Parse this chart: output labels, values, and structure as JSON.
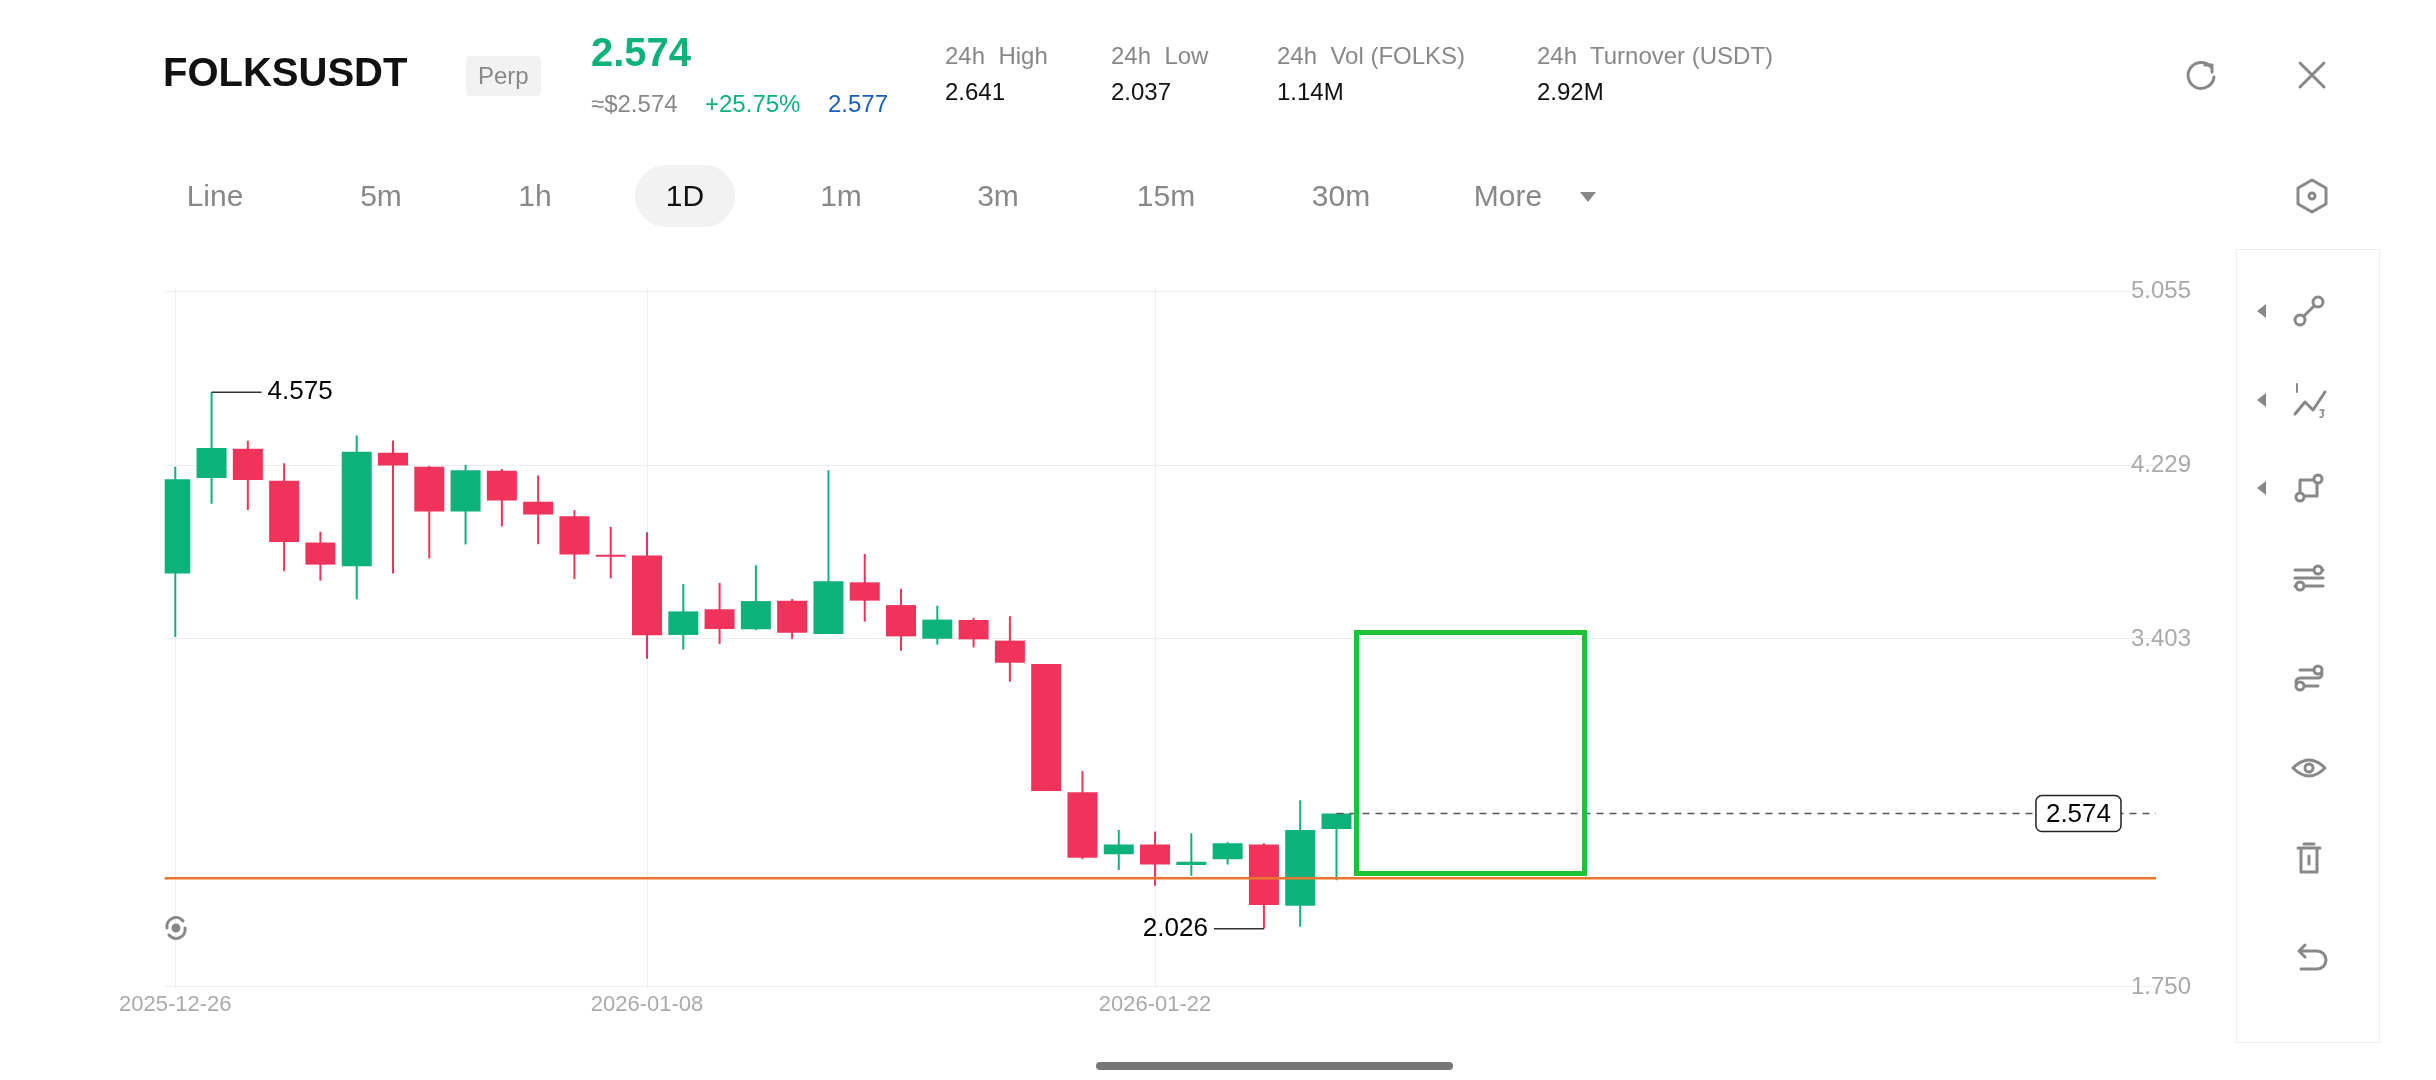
{
  "chart_data": {
    "type": "candlestick",
    "title": "FOLKSUSDT",
    "annotations": [
      "Perp",
      "2.574",
      "≈$2.574",
      "+25.75%",
      "2.577",
      "24h  High",
      "2.641",
      "24h  Low",
      "2.037",
      "24h  Vol (FOLKS)",
      "1.14M",
      "24h  Turnover (USDT)",
      "2.92M",
      "Line",
      "5m",
      "1h",
      "1D",
      "1m",
      "3m",
      "15m",
      "30m",
      "More",
      {
        "text": "4.575",
        "x": "2025-12-27",
        "y": 4.575
      },
      {
        "text": "2.026",
        "x": "2026-01-25",
        "y": 2.026
      }
    ],
    "x": [
      "2025-12-26",
      "2025-12-27",
      "2025-12-28",
      "2025-12-29",
      "2025-12-30",
      "2025-12-31",
      "2026-01-01",
      "2026-01-02",
      "2026-01-03",
      "2026-01-04",
      "2026-01-05",
      "2026-01-06",
      "2026-01-07",
      "2026-01-08",
      "2026-01-09",
      "2026-01-10",
      "2026-01-11",
      "2026-01-12",
      "2026-01-13",
      "2026-01-14",
      "2026-01-15",
      "2026-01-16",
      "2026-01-17",
      "2026-01-18",
      "2026-01-19",
      "2026-01-20",
      "2026-01-21",
      "2026-01-22",
      "2026-01-23",
      "2026-01-24",
      "2026-01-25",
      "2026-01-26",
      "2026-01-27"
    ],
    "ohlc": [
      [
        3.714,
        4.221,
        3.412,
        4.162
      ],
      [
        4.167,
        4.575,
        4.045,
        4.31
      ],
      [
        4.307,
        4.345,
        4.015,
        4.158
      ],
      [
        4.154,
        4.238,
        3.725,
        3.864
      ],
      [
        3.861,
        3.912,
        3.68,
        3.756
      ],
      [
        3.748,
        4.37,
        3.591,
        4.292
      ],
      [
        4.288,
        4.346,
        3.714,
        4.227
      ],
      [
        4.221,
        4.224,
        3.785,
        4.009
      ],
      [
        4.009,
        4.231,
        3.852,
        4.204
      ],
      [
        4.202,
        4.21,
        3.937,
        4.061
      ],
      [
        4.055,
        4.18,
        3.853,
        3.994
      ],
      [
        3.986,
        4.015,
        3.687,
        3.804
      ],
      [
        3.803,
        3.936,
        3.691,
        3.802
      ],
      [
        3.8,
        3.91,
        3.309,
        3.42
      ],
      [
        3.422,
        3.664,
        3.353,
        3.534
      ],
      [
        3.544,
        3.669,
        3.379,
        3.45
      ],
      [
        3.449,
        3.753,
        3.445,
        3.583
      ],
      [
        3.585,
        3.593,
        3.403,
        3.433
      ],
      [
        3.426,
        4.204,
        3.426,
        3.677
      ],
      [
        3.672,
        3.807,
        3.485,
        3.585
      ],
      [
        3.564,
        3.641,
        3.347,
        3.415
      ],
      [
        3.404,
        3.561,
        3.376,
        3.495
      ],
      [
        3.493,
        3.503,
        3.363,
        3.401
      ],
      [
        3.395,
        3.511,
        3.2,
        3.29
      ],
      [
        3.284,
        3.284,
        2.681,
        2.681
      ],
      [
        2.675,
        2.776,
        2.357,
        2.364
      ],
      [
        2.38,
        2.496,
        2.305,
        2.426
      ],
      [
        2.426,
        2.488,
        2.231,
        2.332
      ],
      [
        2.329,
        2.48,
        2.278,
        2.345
      ],
      [
        2.357,
        2.437,
        2.332,
        2.432
      ],
      [
        2.427,
        2.432,
        2.026,
        2.139
      ],
      [
        2.135,
        2.637,
        2.036,
        2.495
      ],
      [
        2.5,
        2.574,
        2.257,
        2.574
      ]
    ],
    "colors": [
      "#0db27a",
      "#0db27a",
      "#f0335a",
      "#f0335a",
      "#f0335a",
      "#0db27a",
      "#f0335a",
      "#f0335a",
      "#0db27a",
      "#f0335a",
      "#f0335a",
      "#f0335a",
      "#f0335a",
      "#f0335a",
      "#0db27a",
      "#f0335a",
      "#0db27a",
      "#f0335a",
      "#0db27a",
      "#f0335a",
      "#f0335a",
      "#0db27a",
      "#f0335a",
      "#f0335a",
      "#f0335a",
      "#f0335a",
      "#0db27a",
      "#f0335a",
      "#0db27a",
      "#0db27a",
      "#f0335a",
      "#0db27a",
      "#0db27a"
    ],
    "xlim": [
      "2025-12-25T17:00",
      "2026-02-18T14:00"
    ],
    "xticks": [
      "2025-12-26",
      "2026-01-08",
      "2026-01-22"
    ],
    "ylim": [
      1.742,
      5.073
    ],
    "yticks": [
      5.055,
      4.229,
      3.403,
      {
        "value": 1.75,
        "label": "1.750"
      }
    ],
    "ref_lines": [
      {
        "axis": "y",
        "value": 2.266,
        "color": "#e8762c",
        "line_style": "solid"
      },
      {
        "axis": "y",
        "value": 2.574,
        "label": "2.574",
        "color": "#555555",
        "line_style": "dashed"
      }
    ],
    "grid": true
  }
}
